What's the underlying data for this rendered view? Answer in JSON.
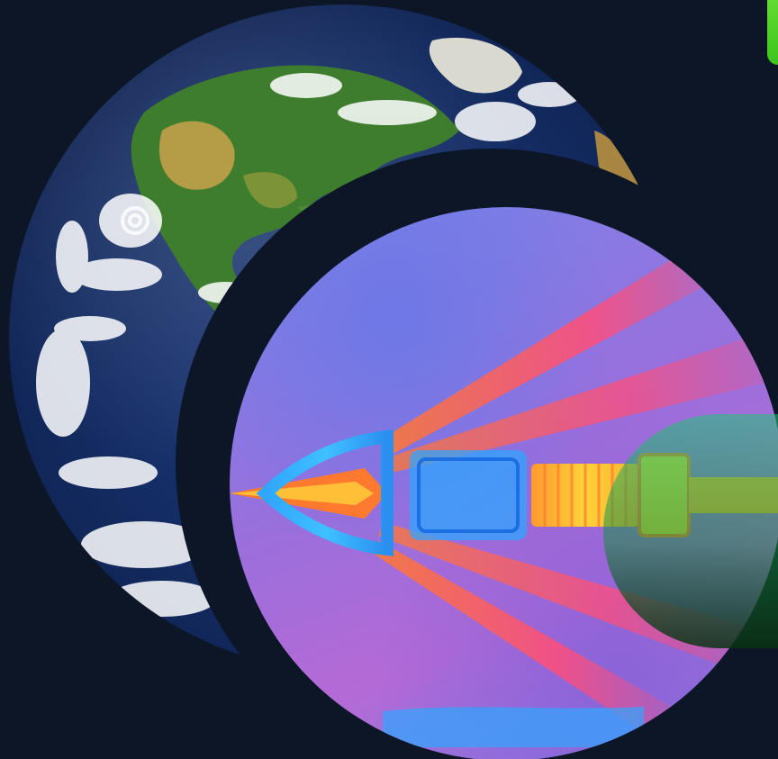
{
  "scene": {
    "background_color": "#0c1627",
    "accent_green": "#4fd42a",
    "earth": {
      "description_label": "",
      "ocean_color": "#1a3572",
      "land_color": "#3f7d2e",
      "desert_color": "#c9a24a",
      "cloud_color": "#ffffff"
    },
    "thermal": {
      "palette": [
        "#2fa6ff",
        "#7a84e8",
        "#b56ad6",
        "#ff4d7a",
        "#ff7a2e",
        "#ffd23a"
      ]
    }
  }
}
